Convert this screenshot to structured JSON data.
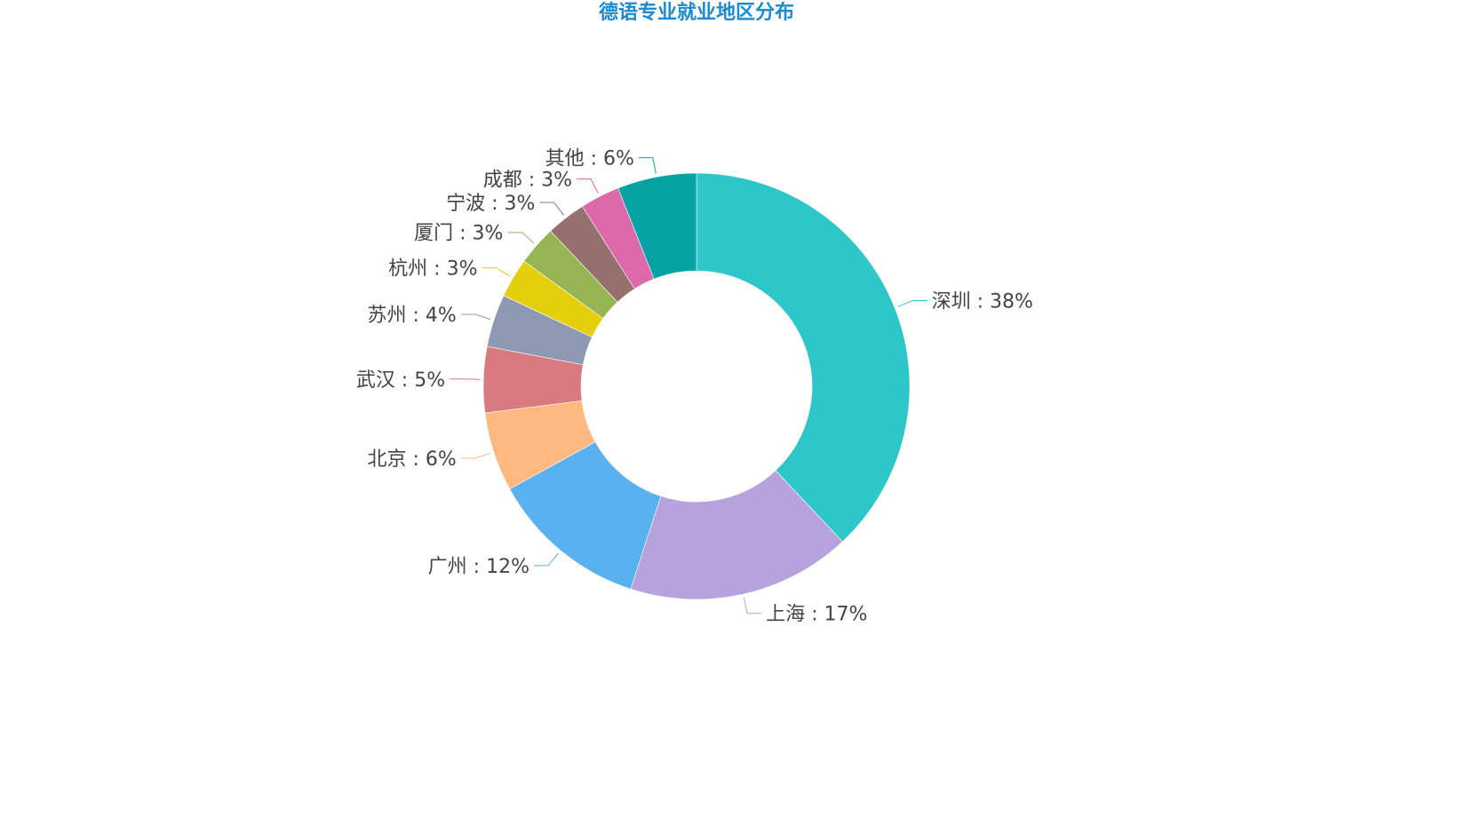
{
  "title": "德语专业就业地区分布",
  "chart_data": {
    "type": "pie",
    "variant": "donut",
    "title": "德语专业就业地区分布",
    "categories": [
      "深圳",
      "上海",
      "广州",
      "北京",
      "武汉",
      "苏州",
      "杭州",
      "厦门",
      "宁波",
      "成都",
      "其他"
    ],
    "values": [
      38,
      17,
      12,
      6,
      5,
      4,
      3,
      3,
      3,
      3,
      6
    ],
    "labels": [
      "深圳 : 38%",
      "上海 : 17%",
      "广州 : 12%",
      "北京 : 6%",
      "武汉 : 5%",
      "苏州 : 4%",
      "杭州 : 3%",
      "厦门 : 3%",
      "宁波 : 3%",
      "成都 : 3%",
      "其他 : 6%"
    ],
    "colors": [
      "#2ec7c9",
      "#b6a2de",
      "#5ab1ef",
      "#ffb980",
      "#d87a80",
      "#8d98b3",
      "#e5cf0d",
      "#97b552",
      "#95706d",
      "#dc69aa",
      "#07a2a4"
    ],
    "unit": "%",
    "legend": "none",
    "grid": false,
    "center": [
      784,
      435
    ],
    "inner_radius": 130,
    "outer_radius": 240,
    "start_angle_deg": 90,
    "direction": "clockwise"
  }
}
